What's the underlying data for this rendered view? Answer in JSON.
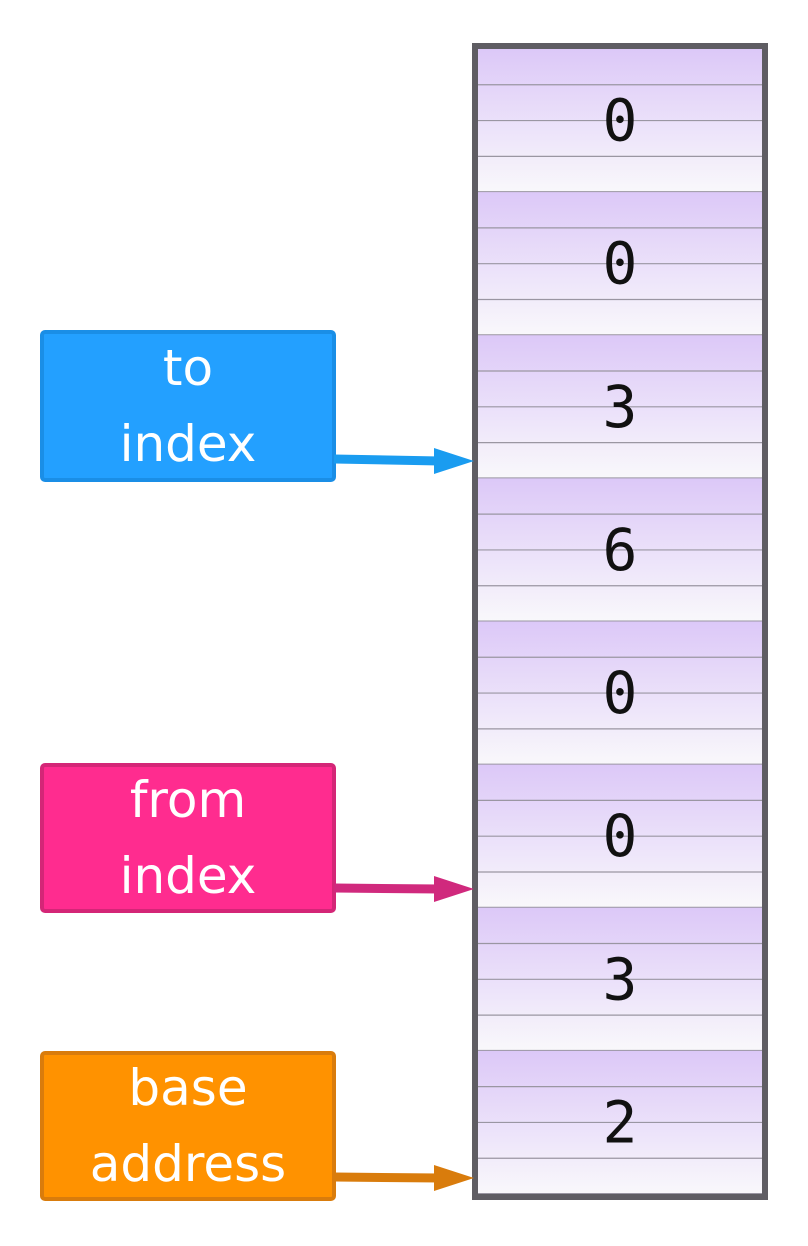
{
  "memory": {
    "cells": [
      "0",
      "0",
      "3",
      "6",
      "0",
      "0",
      "3",
      "2"
    ]
  },
  "pointers": {
    "to_index": {
      "line1": "to",
      "line2": "index",
      "color": "#23a0ff",
      "arrow_color": "#1a9cf0",
      "points_to_cell": 2
    },
    "from_index": {
      "line1": "from",
      "line2": "index",
      "color": "#ff2c8f",
      "arrow_color": "#d0297d",
      "points_to_cell": 5
    },
    "base_address": {
      "line1": "base",
      "line2": "address",
      "color": "#ff9200",
      "arrow_color": "#d97c0c",
      "points_to_cell": 7
    }
  },
  "colors": {
    "cell_top": "#dcc8f8",
    "cell_bottom": "#f9f8fb",
    "grid_line": "#9a96a2",
    "frame": "#5f5d63"
  }
}
